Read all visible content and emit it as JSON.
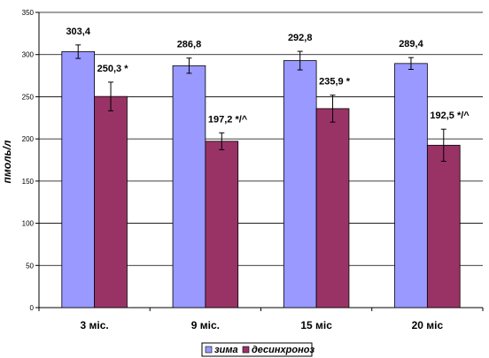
{
  "chart_data": {
    "type": "bar",
    "title": "",
    "xlabel": "",
    "ylabel": "пмоль/л",
    "ylim": [
      0,
      350
    ],
    "yticks": [
      0,
      50,
      100,
      150,
      200,
      250,
      300,
      350
    ],
    "categories": [
      "3 міс.",
      "9 міс.",
      "15 міс",
      "20 міс"
    ],
    "series": [
      {
        "name": "зима",
        "color": "#9999FF",
        "values": [
          303.4,
          286.8,
          292.8,
          289.4
        ],
        "errors": [
          8,
          9,
          11,
          7
        ],
        "labels": [
          "303,4",
          "286,8",
          "292,8",
          "289,4"
        ]
      },
      {
        "name": "десинхроноз",
        "color": "#993366",
        "values": [
          250.3,
          197.2,
          235.9,
          192.5
        ],
        "errors": [
          17,
          10,
          16,
          19
        ],
        "labels": [
          "250,3 *",
          "197,2 */^",
          "235,9 *",
          "192,5 */^"
        ]
      }
    ],
    "grid": true,
    "legend": "bottom"
  }
}
